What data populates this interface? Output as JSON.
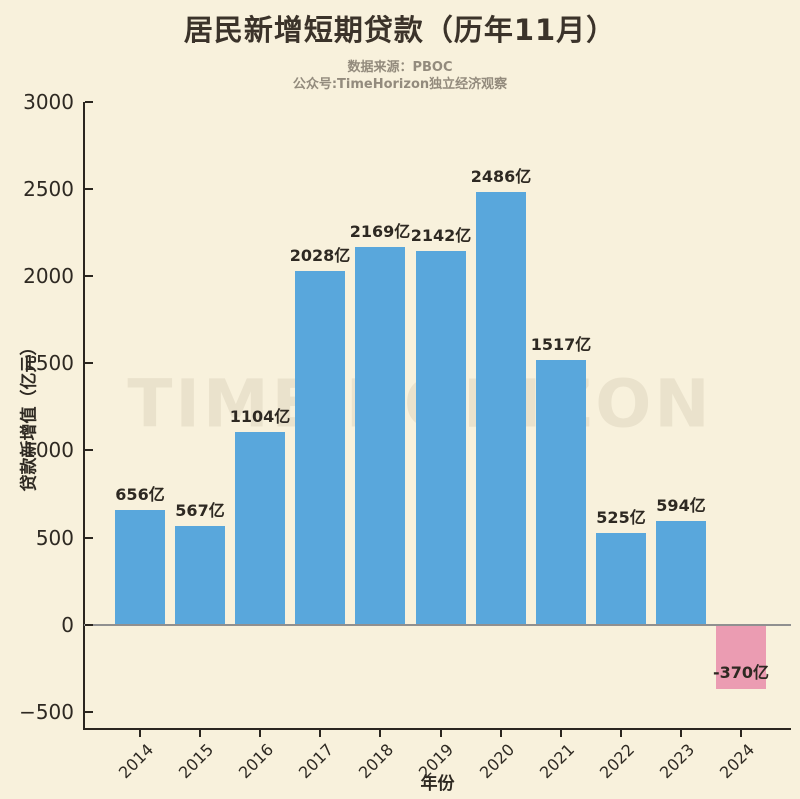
{
  "chart_data": {
    "type": "bar",
    "title": "居民新增短期贷款（历年11月）",
    "source_line": "数据来源：PBOC",
    "credit_line": "公众号:TimeHorizon独立经济观察",
    "watermark": "TIME HORIZON",
    "xlabel": "年份",
    "ylabel": "贷款新增值（亿元）",
    "categories": [
      "2014",
      "2015",
      "2016",
      "2017",
      "2018",
      "2019",
      "2020",
      "2021",
      "2022",
      "2023",
      "2024"
    ],
    "values": [
      656,
      567,
      1104,
      2028,
      2169,
      2142,
      2486,
      1517,
      525,
      594,
      -370
    ],
    "bar_labels": [
      "656亿",
      "567亿",
      "1104亿",
      "2028亿",
      "2169亿",
      "2142亿",
      "2486亿",
      "1517亿",
      "525亿",
      "594亿",
      "-370亿"
    ],
    "yticks": [
      3000,
      2500,
      2000,
      1500,
      1000,
      500,
      0,
      -500
    ],
    "ytick_labels": [
      "3000",
      "2500",
      "2000",
      "1500",
      "1000",
      "500",
      "0",
      "−500"
    ],
    "ylim": [
      -593,
      3000
    ],
    "grid": false,
    "legend": null,
    "colors": {
      "positive_bar": "#59A7DC",
      "negative_bar": "#EB9CB2",
      "background": "#F8F1DC",
      "title": "#3B332A",
      "subtitle": "#938B7D",
      "text": "#2E2922",
      "axis": "#2B2620",
      "zero_line": "#909090",
      "watermark": "#EAE2CC"
    }
  }
}
